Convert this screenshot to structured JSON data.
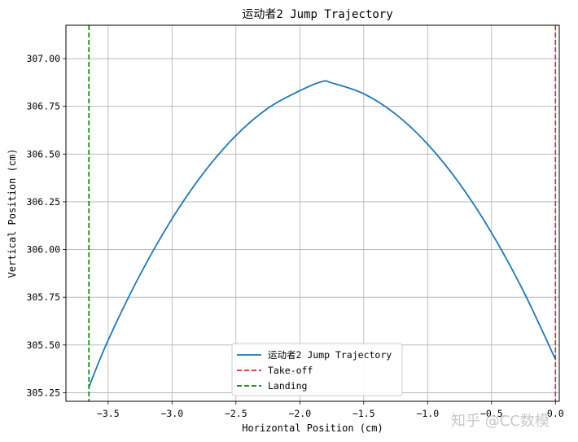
{
  "chart_data": {
    "type": "line",
    "title": "运动者2 Jump Trajectory",
    "xlabel": "Horizontal Position (cm)",
    "ylabel": "Vertical Position (cm)",
    "xlim": [
      -3.83,
      0.03
    ],
    "ylim": [
      305.205,
      307.175
    ],
    "x_ticks": [
      -3.5,
      -3.0,
      -2.5,
      -2.0,
      -1.5,
      -1.0,
      -0.5,
      0.0
    ],
    "x_tick_labels": [
      "−3.5",
      "−3.0",
      "−2.5",
      "−2.0",
      "−1.5",
      "−1.0",
      "−0.5",
      "0.0"
    ],
    "y_ticks": [
      305.25,
      305.5,
      305.75,
      306.0,
      306.25,
      306.5,
      306.75,
      307.0
    ],
    "y_tick_labels": [
      "305.25",
      "305.50",
      "305.75",
      "306.00",
      "306.25",
      "306.50",
      "306.75",
      "307.00"
    ],
    "grid": true,
    "legend_position": "lower center",
    "series": [
      {
        "name": "运动者2 Jump Trajectory",
        "color": "#1f77b4",
        "style": "solid",
        "x": [
          -3.65,
          -3.5,
          -3.25,
          -3.0,
          -2.75,
          -2.5,
          -2.25,
          -2.0,
          -1.825,
          -1.75,
          -1.5,
          -1.25,
          -1.0,
          -0.75,
          -0.5,
          -0.25,
          0.0
        ],
        "y": [
          305.28,
          305.525,
          305.868,
          306.161,
          306.404,
          306.597,
          306.74,
          306.832,
          306.88,
          306.873,
          306.816,
          306.709,
          306.552,
          306.345,
          306.088,
          305.781,
          305.425
        ]
      },
      {
        "name": "Take-off",
        "color": "#d62728",
        "style": "dashed",
        "x_value": 0.0
      },
      {
        "name": "Landing",
        "color": "#008000",
        "style": "dashed",
        "x_value": -3.65
      }
    ]
  },
  "watermark": {
    "text": "知乎 @CC数模"
  }
}
